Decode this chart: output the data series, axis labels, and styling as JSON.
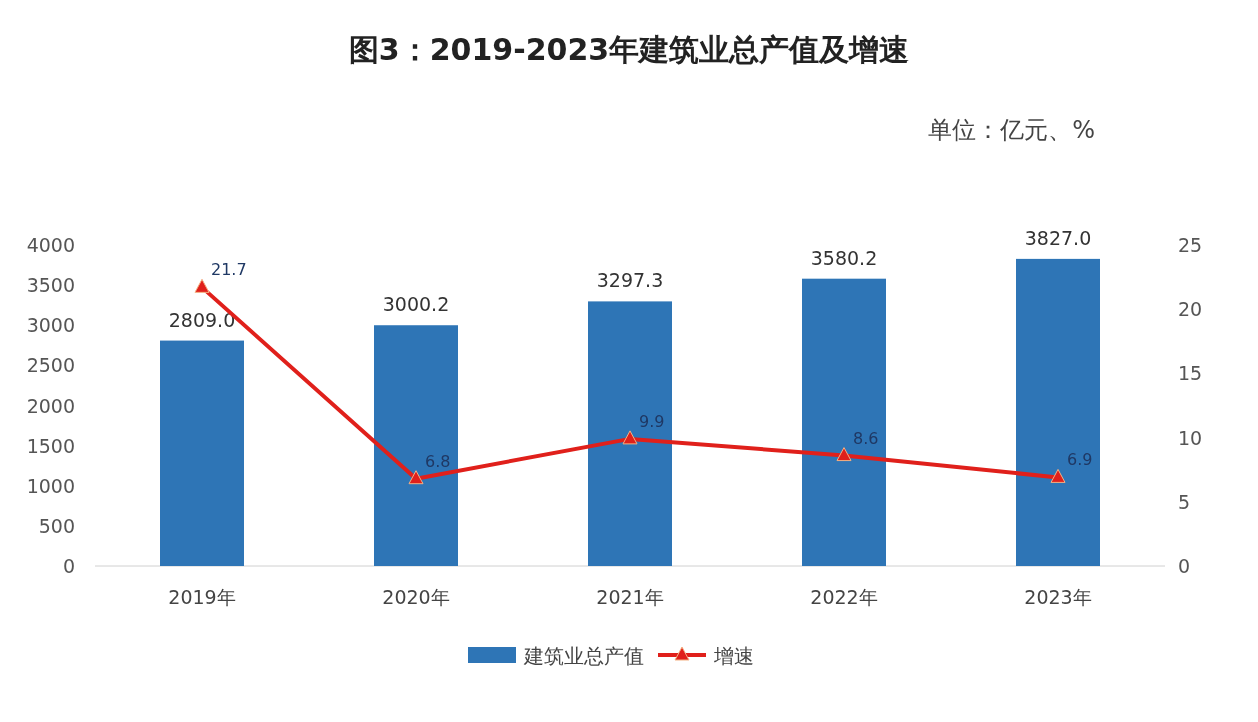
{
  "chart_data": {
    "type": "bar",
    "title": "图3：2019-2023年建筑业总产值及增速",
    "annotations": [
      "单位：亿元、%"
    ],
    "categories": [
      "2019年",
      "2020年",
      "2021年",
      "2022年",
      "2023年"
    ],
    "series": [
      {
        "name": "建筑业总产值",
        "color": "#2e75b6",
        "values": [
          2809.0,
          3000.2,
          3297.3,
          3580.2,
          3827.0
        ],
        "value_labels": [
          "2809.0",
          "3000.2",
          "3297.3",
          "3580.2",
          "3827.0"
        ]
      },
      {
        "name": "增速",
        "type": "line",
        "axis": "y2",
        "color": "#e0201b",
        "marker": "triangle",
        "values": [
          21.7,
          6.8,
          9.9,
          8.6,
          6.9
        ],
        "value_labels": [
          "21.7",
          "6.8",
          "9.9",
          "8.6",
          "6.9"
        ]
      }
    ],
    "ylim": [
      0,
      4000
    ],
    "yticks": [
      0,
      500,
      1000,
      1500,
      2000,
      2500,
      3000,
      3500,
      4000
    ],
    "y2lim": [
      0,
      25
    ],
    "y2ticks": [
      0,
      5,
      10,
      15,
      20,
      25
    ],
    "legend": "bottom"
  }
}
